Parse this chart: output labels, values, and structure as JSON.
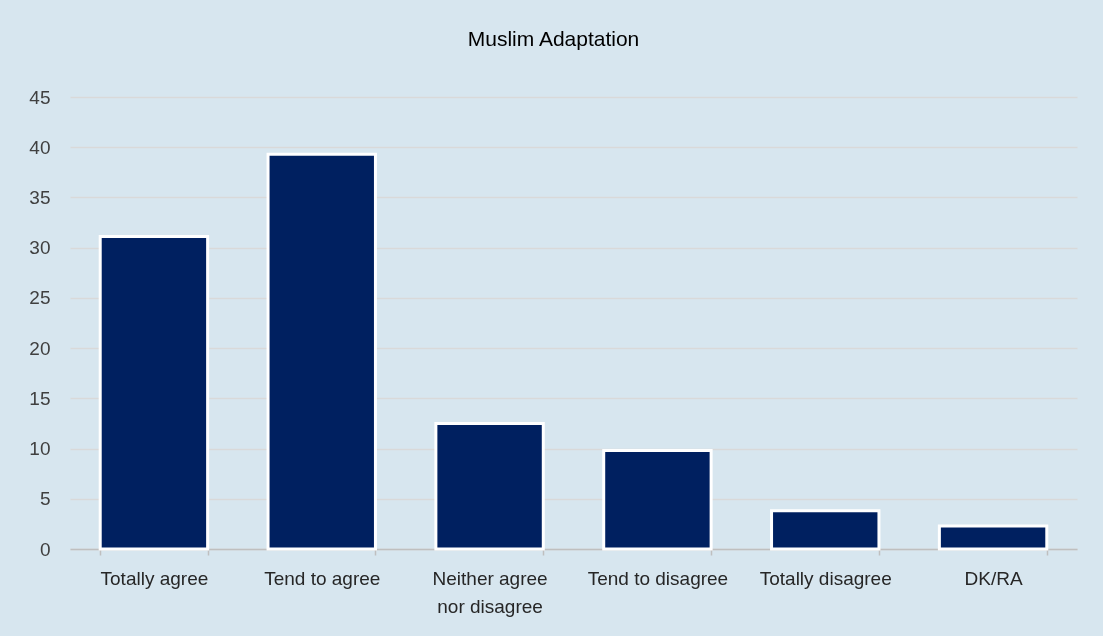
{
  "chart_data": {
    "type": "bar",
    "title": "Muslim Adaptation",
    "categories": [
      "Totally agree",
      "Tend to agree",
      "Neither agree nor disagree",
      "Tend to disagree",
      "Totally disagree",
      "DK/RA"
    ],
    "values": [
      31.1,
      39.3,
      12.5,
      9.8,
      3.8,
      2.3
    ],
    "color": "#002060",
    "ylim": [
      0,
      45
    ],
    "yticks": [
      0,
      5,
      10,
      15,
      20,
      25,
      30,
      35,
      40,
      45
    ],
    "grid": "y"
  }
}
